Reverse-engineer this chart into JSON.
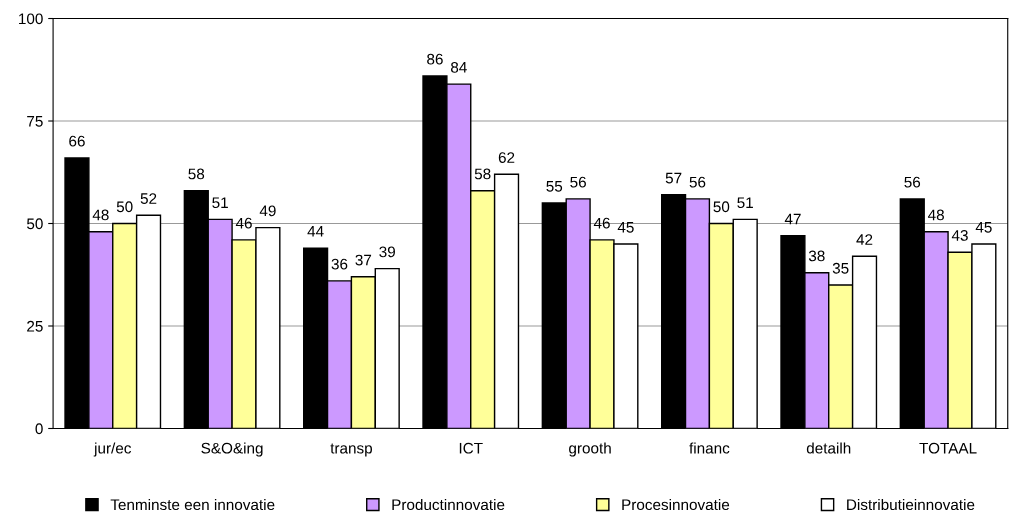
{
  "chart_data": {
    "type": "bar",
    "categories": [
      "jur/ec",
      "S&O&ing",
      "transp",
      "ICT",
      "grooth",
      "financ",
      "detailh",
      "TOTAAL"
    ],
    "series": [
      {
        "name": "Tenminste een innovatie",
        "color": "#000000",
        "values": [
          66,
          58,
          44,
          86,
          55,
          57,
          47,
          56
        ]
      },
      {
        "name": "Productinnovatie",
        "color": "#cc99ff",
        "values": [
          48,
          51,
          36,
          84,
          56,
          56,
          38,
          48
        ]
      },
      {
        "name": "Procesinnovatie",
        "color": "#ffff99",
        "values": [
          50,
          46,
          37,
          58,
          46,
          50,
          35,
          43
        ]
      },
      {
        "name": "Distributieinnovatie",
        "color": "#ffffff",
        "values": [
          52,
          49,
          39,
          62,
          45,
          51,
          42,
          45
        ]
      }
    ],
    "ylim": [
      0,
      100
    ],
    "yticks": [
      0,
      25,
      50,
      75,
      100
    ],
    "grid": "y",
    "legend": "bottom",
    "data_labels": true
  }
}
